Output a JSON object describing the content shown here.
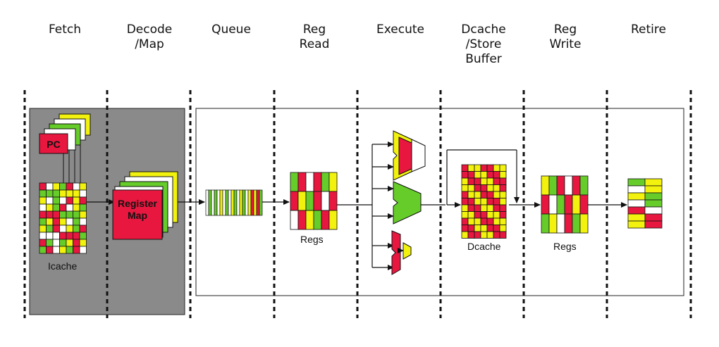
{
  "stages": [
    {
      "id": "fetch",
      "label": "Fetch"
    },
    {
      "id": "decode",
      "label": "Decode\n/Map"
    },
    {
      "id": "queue",
      "label": "Queue"
    },
    {
      "id": "regread",
      "label": "Reg\nRead"
    },
    {
      "id": "execute",
      "label": "Execute"
    },
    {
      "id": "dcache",
      "label": "Dcache\n/Store\nBuffer"
    },
    {
      "id": "regwrite",
      "label": "Reg\nWrite"
    },
    {
      "id": "retire",
      "label": "Retire"
    }
  ],
  "blocks": {
    "pc": "PC",
    "icache": "Icache",
    "register_map": "Register\nMap",
    "regs_read": "Regs",
    "dcache": "Dcache",
    "regs_write": "Regs"
  },
  "colors": {
    "red": "#e8173f",
    "green": "#66cc2a",
    "yellow": "#f2f20e",
    "white": "#ffffff",
    "gray_panel": "#8a8a8a"
  }
}
